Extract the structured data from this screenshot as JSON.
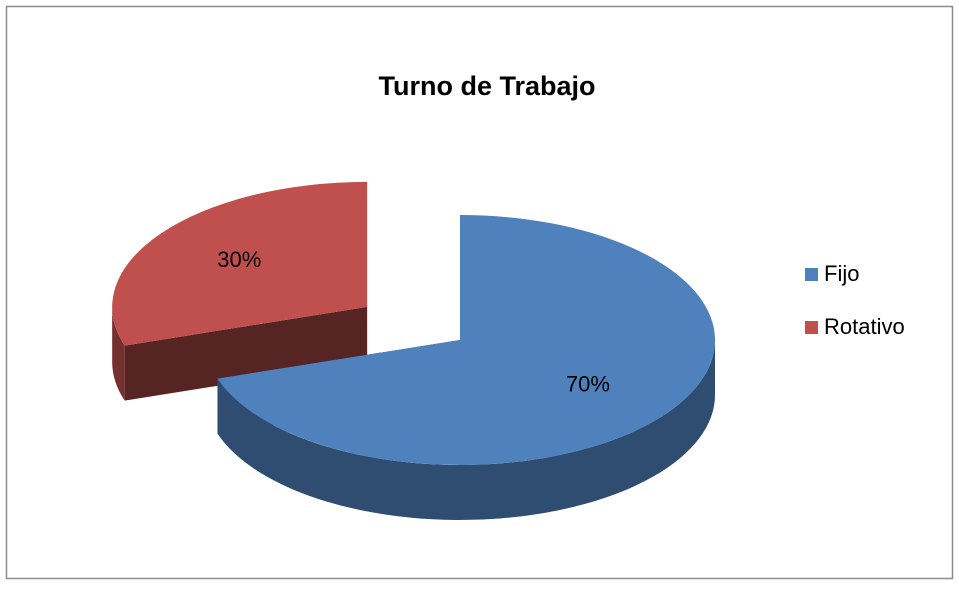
{
  "chart_data": {
    "type": "pie3d",
    "title": "Turno de Trabajo",
    "categories": [
      "Fijo",
      "Rotativo"
    ],
    "values": [
      70,
      30
    ],
    "value_labels": [
      "70%",
      "30%"
    ],
    "colors": [
      "#4f81bd",
      "#c0504d"
    ],
    "explode": [
      0,
      0.45
    ],
    "legend": "right"
  }
}
